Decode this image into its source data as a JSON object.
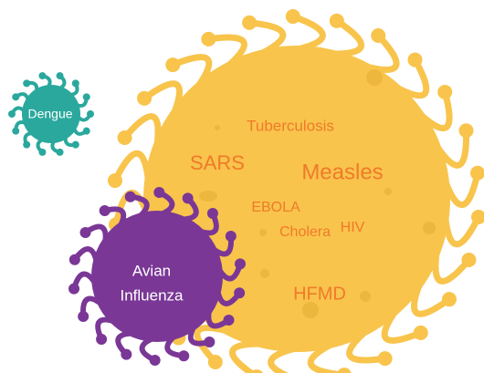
{
  "large_virus": {
    "labels": [
      "Tuberculosis",
      "SARS",
      "Measles",
      "EBOLA",
      "Cholera",
      "HIV",
      "HFMD"
    ]
  },
  "small_virus": {
    "label": "Dengue"
  },
  "medium_virus": {
    "lines": [
      "Avian",
      "Influenza"
    ]
  }
}
